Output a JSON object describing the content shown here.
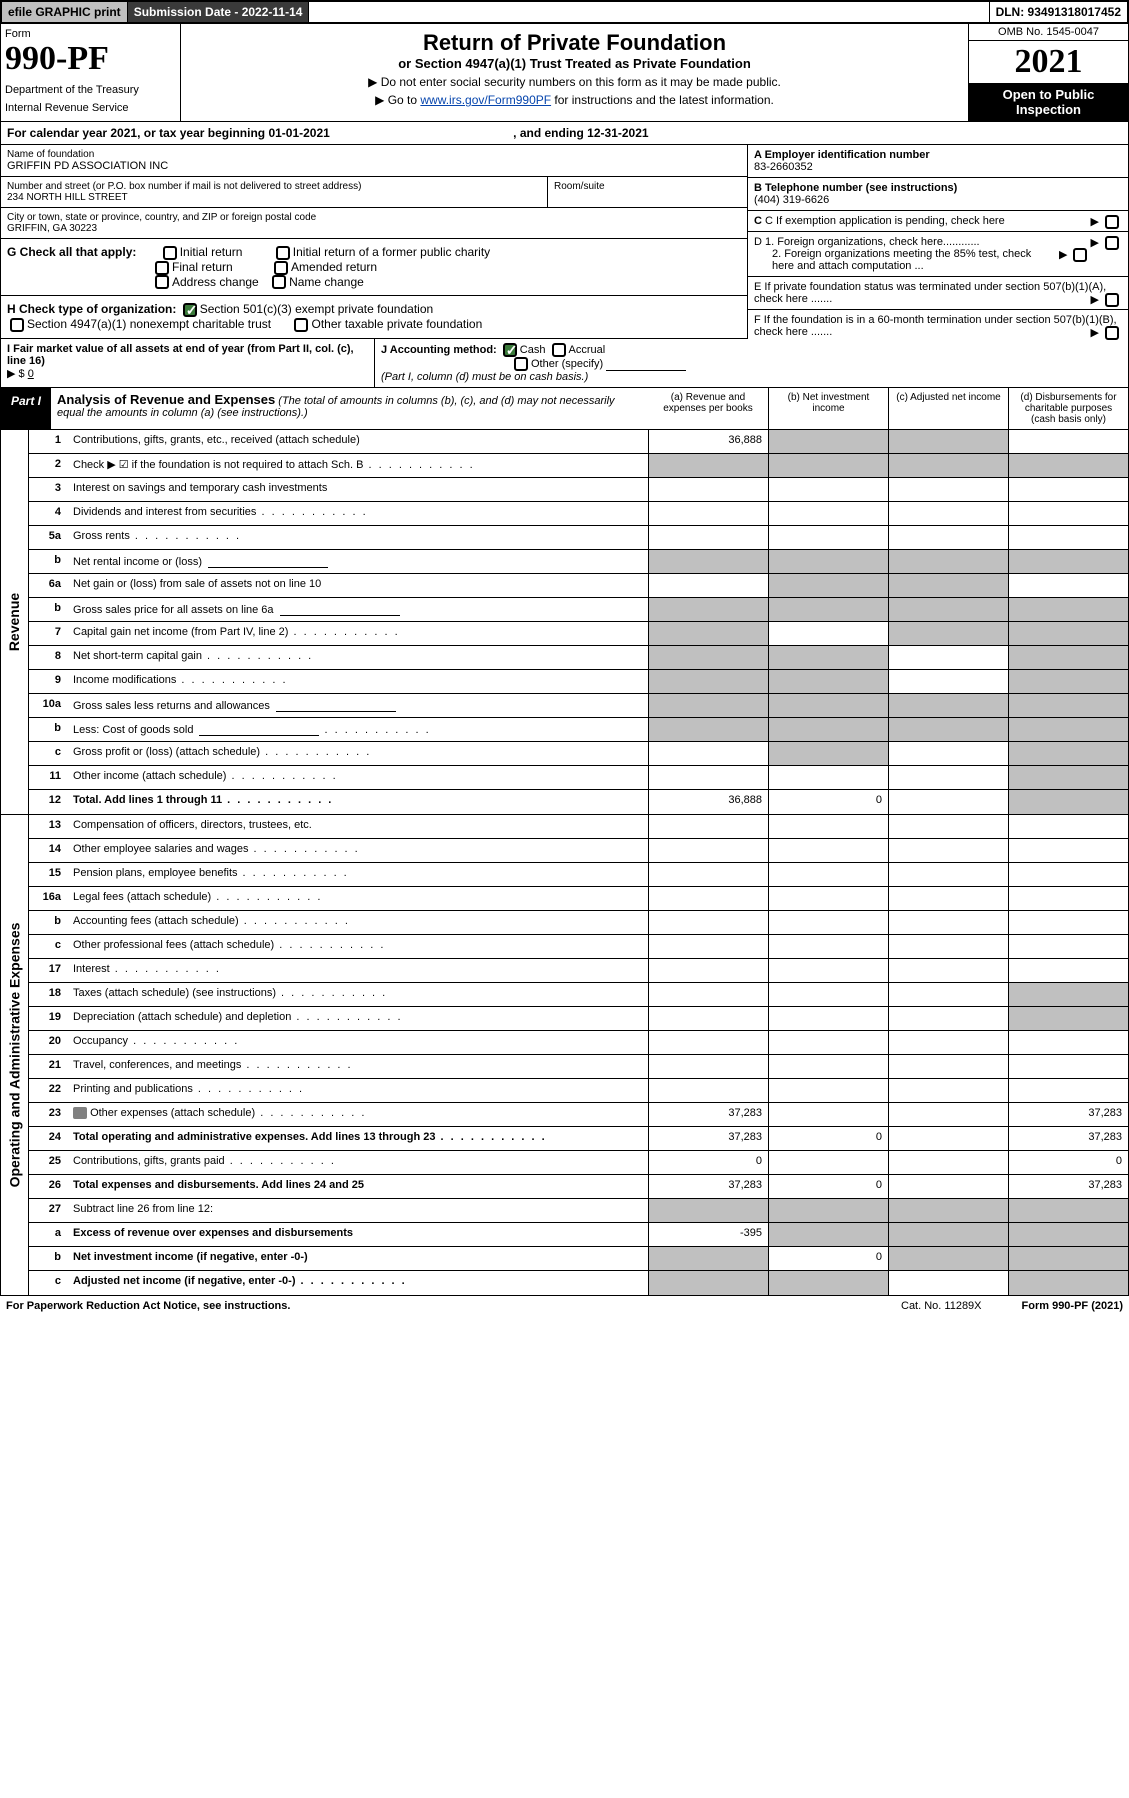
{
  "topbar": {
    "efile": "efile GRAPHIC print",
    "submission": "Submission Date - 2022-11-14",
    "dln": "DLN: 93491318017452"
  },
  "header": {
    "form_label": "Form",
    "form_no": "990-PF",
    "dept": "Department of the Treasury",
    "irs": "Internal Revenue Service",
    "title": "Return of Private Foundation",
    "subtitle": "or Section 4947(a)(1) Trust Treated as Private Foundation",
    "instr1": "▶ Do not enter social security numbers on this form as it may be made public.",
    "instr2_pre": "▶ Go to ",
    "instr2_link": "www.irs.gov/Form990PF",
    "instr2_post": " for instructions and the latest information.",
    "omb": "OMB No. 1545-0047",
    "year": "2021",
    "open": "Open to Public Inspection"
  },
  "calyear": {
    "text": "For calendar year 2021, or tax year beginning 01-01-2021",
    "end": ", and ending 12-31-2021"
  },
  "id": {
    "name_lbl": "Name of foundation",
    "name": "GRIFFIN PD ASSOCIATION INC",
    "street_lbl": "Number and street (or P.O. box number if mail is not delivered to street address)",
    "street": "234 NORTH HILL STREET",
    "room_lbl": "Room/suite",
    "city_lbl": "City or town, state or province, country, and ZIP or foreign postal code",
    "city": "GRIFFIN, GA  30223",
    "a_lbl": "A Employer identification number",
    "a_val": "83-2660352",
    "b_lbl": "B Telephone number (see instructions)",
    "b_val": "(404) 319-6626",
    "c_lbl": "C If exemption application is pending, check here",
    "d1": "D 1. Foreign organizations, check here............",
    "d2": "2. Foreign organizations meeting the 85% test, check here and attach computation ...",
    "e": "E  If private foundation status was terminated under section 507(b)(1)(A), check here .......",
    "f": "F  If the foundation is in a 60-month termination under section 507(b)(1)(B), check here ......."
  },
  "g": {
    "label": "G Check all that apply:",
    "opts": [
      "Initial return",
      "Final return",
      "Address change",
      "Initial return of a former public charity",
      "Amended return",
      "Name change"
    ]
  },
  "h": {
    "label": "H Check type of organization:",
    "opt1": "Section 501(c)(3) exempt private foundation",
    "opt2": "Section 4947(a)(1) nonexempt charitable trust",
    "opt3": "Other taxable private foundation"
  },
  "i": {
    "label": "I Fair market value of all assets at end of year (from Part II, col. (c), line 16)",
    "val": "0"
  },
  "j": {
    "label": "J Accounting method:",
    "cash": "Cash",
    "accrual": "Accrual",
    "other": "Other (specify)",
    "note": "(Part I, column (d) must be on cash basis.)"
  },
  "part1": {
    "tab": "Part I",
    "title": "Analysis of Revenue and Expenses",
    "note": "(The total of amounts in columns (b), (c), and (d) may not necessarily equal the amounts in column (a) (see instructions).)",
    "cols": [
      "(a)  Revenue and expenses per books",
      "(b)  Net investment income",
      "(c)  Adjusted net income",
      "(d)  Disbursements for charitable purposes (cash basis only)"
    ]
  },
  "rev_label": "Revenue",
  "op_label": "Operating and Administrative Expenses",
  "lines": [
    {
      "n": "1",
      "d": "Contributions, gifts, grants, etc., received (attach schedule)",
      "a": "36,888",
      "shb": 1,
      "shc": 1
    },
    {
      "n": "2",
      "d": "Check ▶ ☑ if the foundation is not required to attach Sch. B",
      "dots": 1,
      "allsh": 1
    },
    {
      "n": "3",
      "d": "Interest on savings and temporary cash investments"
    },
    {
      "n": "4",
      "d": "Dividends and interest from securities",
      "dots": 1
    },
    {
      "n": "5a",
      "d": "Gross rents",
      "dots": 1
    },
    {
      "n": "b",
      "d": "Net rental income or (loss)",
      "sub": 1,
      "allsh": 1
    },
    {
      "n": "6a",
      "d": "Net gain or (loss) from sale of assets not on line 10",
      "shb": 1,
      "shc": 1
    },
    {
      "n": "b",
      "d": "Gross sales price for all assets on line 6a",
      "sub": 1,
      "allsh": 1
    },
    {
      "n": "7",
      "d": "Capital gain net income (from Part IV, line 2)",
      "dots": 1,
      "sha": 1,
      "shc": 1,
      "shd": 1
    },
    {
      "n": "8",
      "d": "Net short-term capital gain",
      "dots": 1,
      "sha": 1,
      "shb": 1,
      "shd": 1
    },
    {
      "n": "9",
      "d": "Income modifications",
      "dots": 1,
      "sha": 1,
      "shb": 1,
      "shd": 1
    },
    {
      "n": "10a",
      "d": "Gross sales less returns and allowances",
      "sub": 1,
      "allsh": 1
    },
    {
      "n": "b",
      "d": "Less: Cost of goods sold",
      "dots": 1,
      "sub": 1,
      "allsh": 1
    },
    {
      "n": "c",
      "d": "Gross profit or (loss) (attach schedule)",
      "dots": 1,
      "shb": 1,
      "shd": 1
    },
    {
      "n": "11",
      "d": "Other income (attach schedule)",
      "dots": 1,
      "shd": 1
    },
    {
      "n": "12",
      "d": "Total. Add lines 1 through 11",
      "dots": 1,
      "bold": 1,
      "a": "36,888",
      "b": "0",
      "shd": 1
    }
  ],
  "exp": [
    {
      "n": "13",
      "d": "Compensation of officers, directors, trustees, etc."
    },
    {
      "n": "14",
      "d": "Other employee salaries and wages",
      "dots": 1
    },
    {
      "n": "15",
      "d": "Pension plans, employee benefits",
      "dots": 1
    },
    {
      "n": "16a",
      "d": "Legal fees (attach schedule)",
      "dots": 1
    },
    {
      "n": "b",
      "d": "Accounting fees (attach schedule)",
      "dots": 1
    },
    {
      "n": "c",
      "d": "Other professional fees (attach schedule)",
      "dots": 1
    },
    {
      "n": "17",
      "d": "Interest",
      "dots": 1
    },
    {
      "n": "18",
      "d": "Taxes (attach schedule) (see instructions)",
      "dots": 1,
      "shd": 1
    },
    {
      "n": "19",
      "d": "Depreciation (attach schedule) and depletion",
      "dots": 1,
      "shd": 1
    },
    {
      "n": "20",
      "d": "Occupancy",
      "dots": 1
    },
    {
      "n": "21",
      "d": "Travel, conferences, and meetings",
      "dots": 1
    },
    {
      "n": "22",
      "d": "Printing and publications",
      "dots": 1
    },
    {
      "n": "23",
      "d": "Other expenses (attach schedule)",
      "dots": 1,
      "icon": 1,
      "a": "37,283",
      "dval": "37,283"
    },
    {
      "n": "24",
      "d": "Total operating and administrative expenses. Add lines 13 through 23",
      "dots": 1,
      "bold": 1,
      "a": "37,283",
      "b": "0",
      "dval": "37,283"
    },
    {
      "n": "25",
      "d": "Contributions, gifts, grants paid",
      "dots": 1,
      "a": "0",
      "dval": "0"
    },
    {
      "n": "26",
      "d": "Total expenses and disbursements. Add lines 24 and 25",
      "bold": 1,
      "a": "37,283",
      "b": "0",
      "dval": "37,283"
    },
    {
      "n": "27",
      "d": "Subtract line 26 from line 12:",
      "allsh": 1
    },
    {
      "n": "a",
      "d": "Excess of revenue over expenses and disbursements",
      "bold": 1,
      "a": "-395",
      "shb": 1,
      "shc": 1,
      "shd": 1
    },
    {
      "n": "b",
      "d": "Net investment income (if negative, enter -0-)",
      "bold": 1,
      "sha": 1,
      "b": "0",
      "shc": 1,
      "shd": 1
    },
    {
      "n": "c",
      "d": "Adjusted net income (if negative, enter -0-)",
      "bold": 1,
      "dots": 1,
      "sha": 1,
      "shb": 1,
      "shd": 1
    }
  ],
  "footer": {
    "l": "For Paperwork Reduction Act Notice, see instructions.",
    "c": "Cat. No. 11289X",
    "r": "Form 990-PF (2021)"
  }
}
